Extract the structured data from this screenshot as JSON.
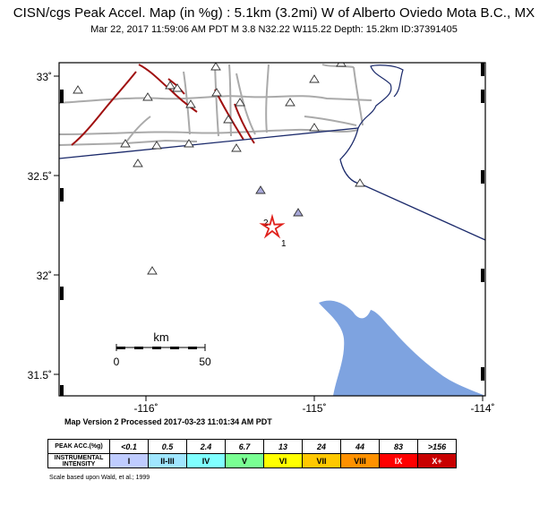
{
  "title": "CISN/cgs Peak Accel. Map (in %g) : 5.1km (3.2mi) W of Alberto Oviedo Mota B.C., MX",
  "subtitle": "Mar 22, 2017 11:59:06 AM PDT   M 3.8   N32.22 W115.22   Depth: 15.2km   ID:37391405",
  "version_text": "Map Version 2 Processed 2017-03-23 11:01:34 AM PDT",
  "axes": {
    "lat_labels": [
      "33˚",
      "32.5˚",
      "32˚",
      "31.5˚"
    ],
    "lon_labels": [
      "-116˚",
      "-115˚",
      "-114˚"
    ]
  },
  "scale_bar": {
    "unit": "km",
    "start": "0",
    "end": "50"
  },
  "epicenter": {
    "lat": 32.22,
    "lon": -115.22,
    "color": "#e0201b"
  },
  "contour_labels": [
    "2",
    "1"
  ],
  "legend": {
    "row1_header": "PEAK ACC.(%g)",
    "row2_header_a": "INSTRUMENTAL",
    "row2_header_b": "INTENSITY",
    "acc": [
      "<0.1",
      "0.5",
      "2.4",
      "6.7",
      "13",
      "24",
      "44",
      "83",
      ">156"
    ],
    "intensity": [
      "I",
      "II-III",
      "IV",
      "V",
      "VI",
      "VII",
      "VIII",
      "IX",
      "X+"
    ],
    "colors": [
      "#ffffff",
      "#bfccff",
      "#a0e6ff",
      "#80ffff",
      "#7aff93",
      "#ffff00",
      "#ffc800",
      "#ff9100",
      "#ff0000",
      "#c80000"
    ]
  },
  "scale_note": "Scale based upon Wald, et al.; 1999",
  "colors": {
    "water": "#7ea3e0",
    "border": "#1b2a6b",
    "faults": "#a01010",
    "roads": "#aaaaaa"
  }
}
